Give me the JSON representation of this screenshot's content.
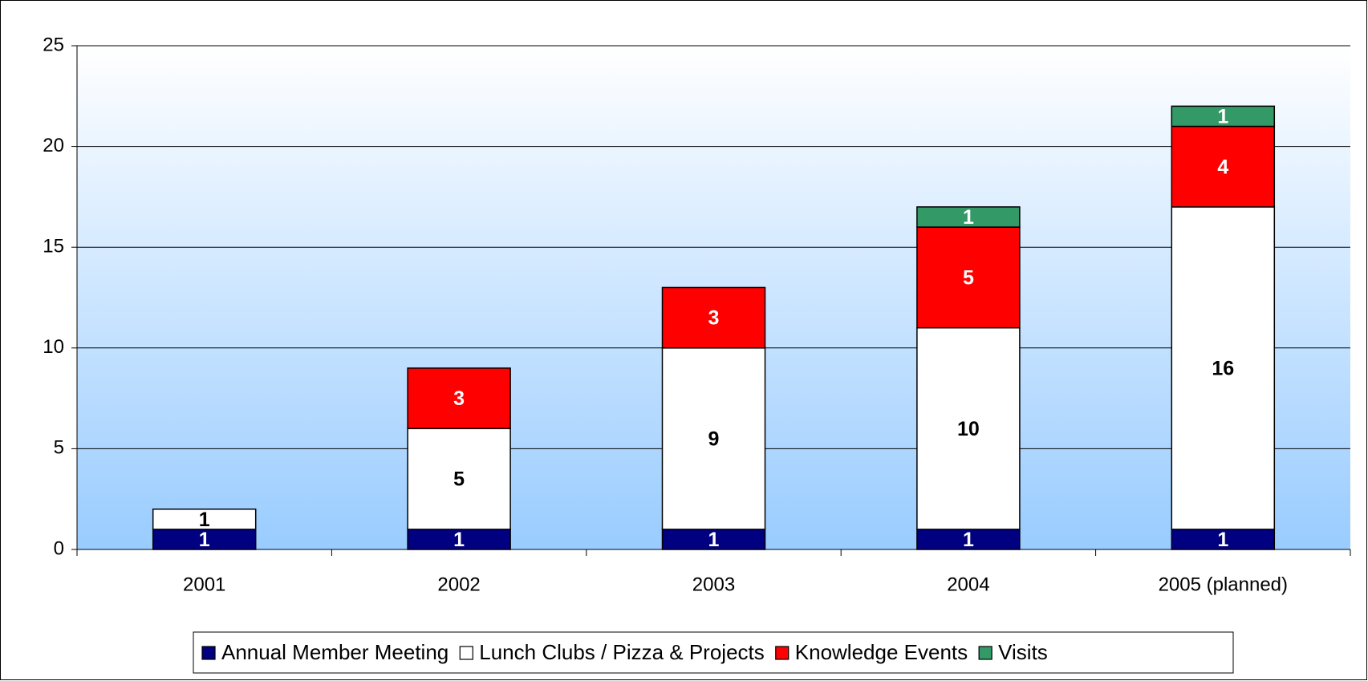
{
  "chart_data": {
    "type": "stacked_bar",
    "categories": [
      "2001",
      "2002",
      "2003",
      "2004",
      "2005 (planned)"
    ],
    "series": [
      {
        "name": "Annual Member Meeting",
        "color": "#000080",
        "values": [
          1,
          1,
          1,
          1,
          1
        ]
      },
      {
        "name": "Lunch Clubs / Pizza & Projects",
        "color": "#ffffff",
        "values": [
          1,
          5,
          9,
          10,
          16
        ]
      },
      {
        "name": "Knowledge Events",
        "color": "#ff0000",
        "values": [
          null,
          3,
          3,
          5,
          4
        ]
      },
      {
        "name": "Visits",
        "color": "#339966",
        "values": [
          null,
          null,
          null,
          1,
          1
        ]
      }
    ],
    "ylim": [
      0,
      25
    ],
    "yticks": [
      0,
      5,
      10,
      15,
      20,
      25
    ],
    "grid": true,
    "legend": "bottom"
  }
}
